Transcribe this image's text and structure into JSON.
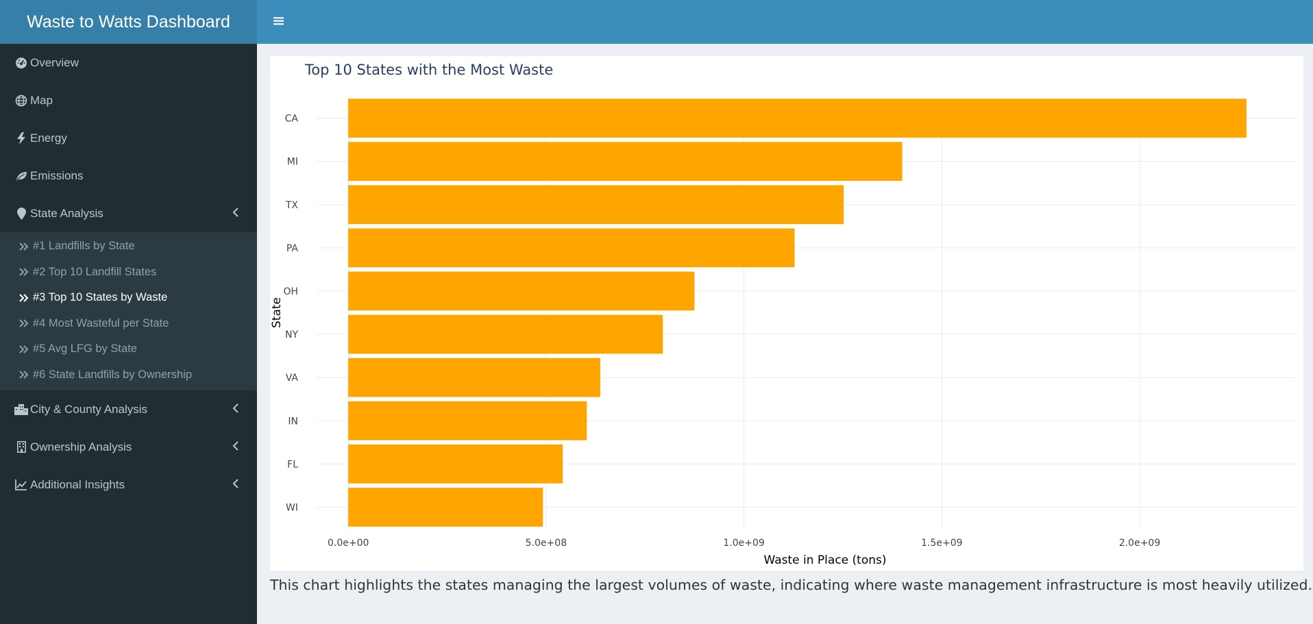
{
  "app": {
    "title": "Waste to Watts Dashboard"
  },
  "header": {
    "toggle_icon": "hamburger-icon",
    "bar_color": "#3c8dbc",
    "brand_color": "#367fa9"
  },
  "sidebar": {
    "items": [
      {
        "label": "Overview",
        "icon": "dashboard-icon"
      },
      {
        "label": "Map",
        "icon": "globe-icon"
      },
      {
        "label": "Energy",
        "icon": "bolt-icon"
      },
      {
        "label": "Emissions",
        "icon": "leaf-icon"
      },
      {
        "label": "State Analysis",
        "icon": "map-marker-icon",
        "expanded": true
      },
      {
        "label": "City & County Analysis",
        "icon": "city-icon"
      },
      {
        "label": "Ownership Analysis",
        "icon": "building-icon"
      },
      {
        "label": "Additional Insights",
        "icon": "line-chart-icon"
      }
    ],
    "state_submenu": [
      {
        "label": "#1 Landfills by State"
      },
      {
        "label": "#2 Top 10 Landfill States"
      },
      {
        "label": "#3 Top 10 States by Waste",
        "active": true
      },
      {
        "label": "#4 Most Wasteful per State"
      },
      {
        "label": "#5 Avg LFG by State"
      },
      {
        "label": "#6 State Landfills by Ownership"
      }
    ]
  },
  "chart_data": {
    "type": "bar",
    "orientation": "horizontal",
    "title": "Top 10 States with the Most Waste",
    "xlabel": "Waste in Place (tons)",
    "ylabel": "State",
    "categories": [
      "CA",
      "MI",
      "TX",
      "PA",
      "OH",
      "NY",
      "VA",
      "IN",
      "FL",
      "WI"
    ],
    "values": [
      2270000000,
      1400000000,
      1252000000,
      1128000000,
      875000000,
      795000000,
      637000000,
      603000000,
      542000000,
      492000000
    ],
    "xlim": [
      -80000000,
      2400000000
    ],
    "x_ticks": [
      0,
      500000000,
      1000000000,
      1500000000,
      2000000000
    ],
    "x_tick_labels": [
      "0.0e+00",
      "5.0e+08",
      "1.0e+09",
      "1.5e+09",
      "2.0e+09"
    ],
    "bar_color": "#FFA500",
    "grid": true
  },
  "caption": "This chart highlights the states managing the largest volumes of waste, indicating where waste management infrastructure is most heavily utilized."
}
